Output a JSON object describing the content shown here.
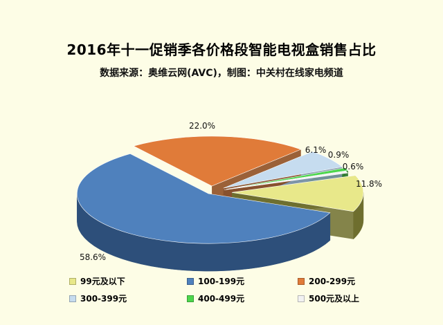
{
  "title": "2016年十一促销季各价格段智能电视盒销售占比",
  "subtitle": "数据来源：奥维云网(AVC)，制图：中关村在线家电频道",
  "chart_data": {
    "type": "pie",
    "style": "3d exploded",
    "legend_position": "bottom",
    "slices": [
      {
        "label": "99元及以下",
        "value": 11.8,
        "display": "11.8%",
        "color": "#e8e88a",
        "side": "#6e6e2e"
      },
      {
        "label": "100-199元",
        "value": 58.6,
        "display": "58.6%",
        "color": "#4f81bd",
        "side": "#2d4f7a"
      },
      {
        "label": "200-299元",
        "value": 22.0,
        "display": "22.0%",
        "color": "#e07b39",
        "side": "#8a4519"
      },
      {
        "label": "300-399元",
        "value": 6.1,
        "display": "6.1%",
        "color": "#c6dcef",
        "side": "#7f95aa"
      },
      {
        "label": "400-499元",
        "value": 0.9,
        "display": "0.9%",
        "color": "#4cd64c",
        "side": "#2a7a2a"
      },
      {
        "label": "500元及以上",
        "value": 0.6,
        "display": "0.6%",
        "color": "#f2f2f2",
        "side": "#9a9a9a"
      }
    ]
  }
}
